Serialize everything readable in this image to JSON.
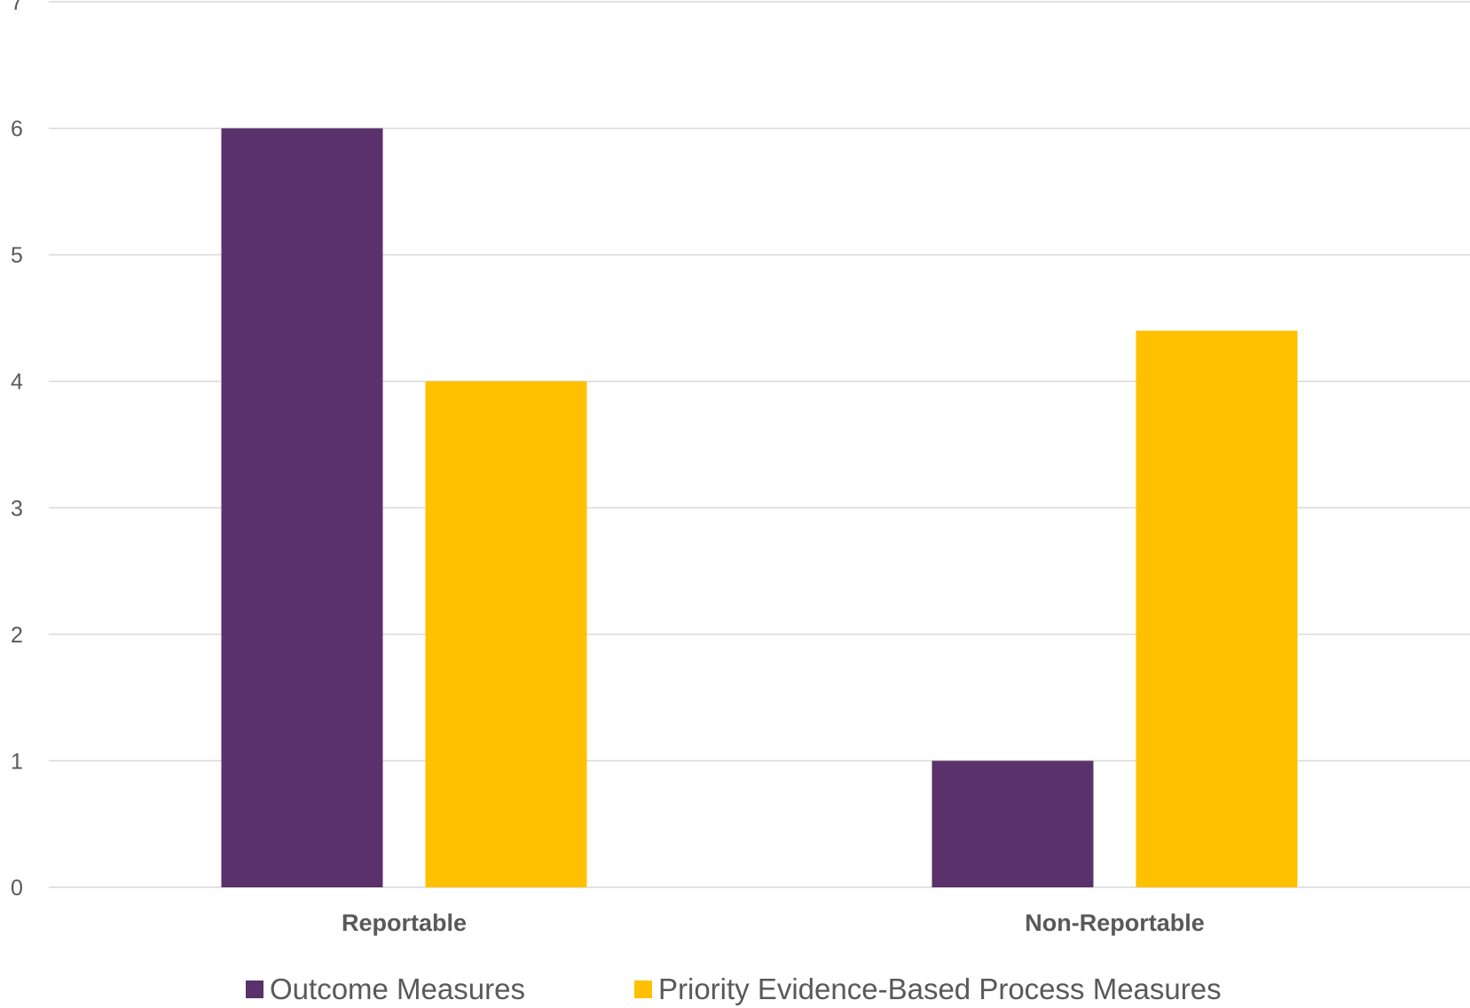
{
  "chart_data": {
    "type": "bar",
    "categories": [
      "Reportable",
      "Non-Reportable"
    ],
    "series": [
      {
        "name": "Outcome Measures",
        "values": [
          6,
          1
        ],
        "color": "#5B316B"
      },
      {
        "name": "Priority Evidence-Based Process Measures",
        "values": [
          4,
          4.4
        ],
        "color": "#FFC000"
      }
    ],
    "ylim": [
      0,
      7
    ],
    "yticks": [
      0,
      1,
      2,
      3,
      4,
      5,
      6,
      7
    ],
    "grid": true,
    "legend": "bottom"
  }
}
